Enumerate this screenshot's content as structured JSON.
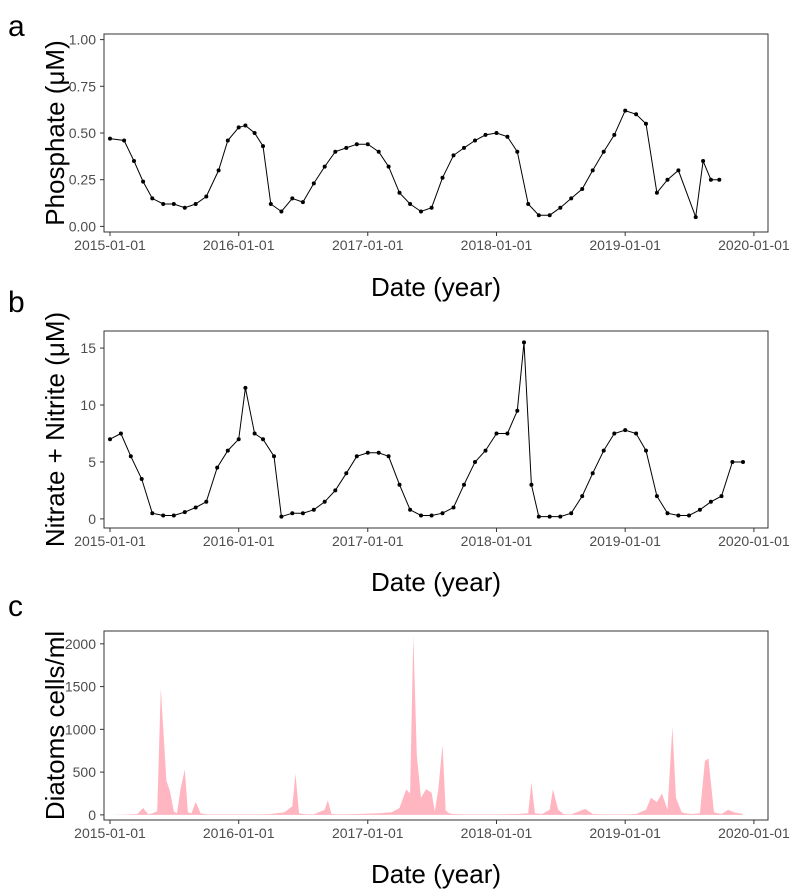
{
  "chart_data": [
    {
      "type": "line",
      "panel_label": "a",
      "xlabel": "Date (year)",
      "ylabel": "Phosphate (μM)",
      "x_ticks": [
        "2015-01-01",
        "2016-01-01",
        "2017-01-01",
        "2018-01-01",
        "2019-01-01",
        "2020-01-01"
      ],
      "xlim": [
        "2014-12-15",
        "2020-02-10"
      ],
      "y_ticks": [
        "0.00",
        "0.25",
        "0.50",
        "0.75",
        "1.00"
      ],
      "ylim": [
        -0.03,
        1.03
      ],
      "grid": false,
      "line_color": "#000000",
      "marker": "point",
      "series": [
        {
          "dates": [
            "2015-01-01",
            "2015-02-10",
            "2015-03-10",
            "2015-04-05",
            "2015-05-01",
            "2015-06-01",
            "2015-07-01",
            "2015-08-01",
            "2015-09-01",
            "2015-10-01",
            "2015-11-05",
            "2015-12-01",
            "2016-01-01",
            "2016-01-20",
            "2016-02-15",
            "2016-03-10",
            "2016-04-01",
            "2016-05-01",
            "2016-06-01",
            "2016-07-01",
            "2016-08-01",
            "2016-09-01",
            "2016-10-01",
            "2016-11-01",
            "2016-12-01",
            "2017-01-01",
            "2017-02-01",
            "2017-03-01",
            "2017-04-01",
            "2017-05-01",
            "2017-06-01",
            "2017-07-01",
            "2017-08-01",
            "2017-09-01",
            "2017-10-01",
            "2017-11-01",
            "2017-12-01",
            "2018-01-01",
            "2018-02-01",
            "2018-03-01",
            "2018-04-01",
            "2018-05-01",
            "2018-06-01",
            "2018-07-01",
            "2018-08-01",
            "2018-09-01",
            "2018-10-01",
            "2018-11-01",
            "2018-12-01",
            "2019-01-01",
            "2019-02-01",
            "2019-03-01",
            "2019-04-01",
            "2019-05-01",
            "2019-06-01",
            "2019-07-20",
            "2019-08-10",
            "2019-09-01",
            "2019-09-25"
          ],
          "values": [
            0.47,
            0.46,
            0.35,
            0.24,
            0.15,
            0.12,
            0.12,
            0.1,
            0.12,
            0.16,
            0.3,
            0.46,
            0.53,
            0.54,
            0.5,
            0.43,
            0.12,
            0.08,
            0.15,
            0.13,
            0.23,
            0.32,
            0.4,
            0.42,
            0.44,
            0.44,
            0.4,
            0.32,
            0.18,
            0.12,
            0.08,
            0.1,
            0.26,
            0.38,
            0.42,
            0.46,
            0.49,
            0.5,
            0.48,
            0.4,
            0.12,
            0.06,
            0.06,
            0.1,
            0.15,
            0.2,
            0.3,
            0.4,
            0.49,
            0.62,
            0.6,
            0.55,
            0.18,
            0.25,
            0.3,
            0.05,
            0.35,
            0.25,
            0.25
          ]
        }
      ]
    },
    {
      "type": "line",
      "panel_label": "b",
      "xlabel": "Date (year)",
      "ylabel": "Nitrate + Nitrite (μM)",
      "x_ticks": [
        "2015-01-01",
        "2016-01-01",
        "2017-01-01",
        "2018-01-01",
        "2019-01-01",
        "2020-01-01"
      ],
      "xlim": [
        "2014-12-15",
        "2020-02-10"
      ],
      "y_ticks": [
        "0",
        "5",
        "10",
        "15"
      ],
      "ylim": [
        -0.8,
        16.5
      ],
      "grid": false,
      "line_color": "#000000",
      "marker": "point",
      "series": [
        {
          "dates": [
            "2015-01-01",
            "2015-02-01",
            "2015-03-01",
            "2015-04-01",
            "2015-05-01",
            "2015-06-01",
            "2015-07-01",
            "2015-08-01",
            "2015-09-01",
            "2015-10-01",
            "2015-11-01",
            "2015-12-01",
            "2016-01-01",
            "2016-01-20",
            "2016-02-15",
            "2016-03-10",
            "2016-04-10",
            "2016-05-01",
            "2016-06-01",
            "2016-07-01",
            "2016-08-01",
            "2016-09-01",
            "2016-10-01",
            "2016-11-01",
            "2016-12-01",
            "2017-01-01",
            "2017-02-01",
            "2017-03-01",
            "2017-04-01",
            "2017-05-01",
            "2017-06-01",
            "2017-07-01",
            "2017-08-01",
            "2017-09-01",
            "2017-10-01",
            "2017-11-01",
            "2017-12-01",
            "2018-01-01",
            "2018-02-01",
            "2018-03-01",
            "2018-03-20",
            "2018-04-10",
            "2018-05-01",
            "2018-06-01",
            "2018-07-01",
            "2018-08-01",
            "2018-09-01",
            "2018-10-01",
            "2018-11-01",
            "2018-12-01",
            "2019-01-01",
            "2019-02-01",
            "2019-03-01",
            "2019-04-01",
            "2019-05-01",
            "2019-06-01",
            "2019-07-01",
            "2019-08-01",
            "2019-09-01",
            "2019-10-01",
            "2019-11-01",
            "2019-12-01"
          ],
          "values": [
            7.0,
            7.5,
            5.5,
            3.5,
            0.5,
            0.3,
            0.3,
            0.6,
            1.0,
            1.5,
            4.5,
            6.0,
            7.0,
            11.5,
            7.5,
            7.0,
            5.5,
            0.2,
            0.5,
            0.5,
            0.8,
            1.5,
            2.5,
            4.0,
            5.5,
            5.8,
            5.8,
            5.5,
            3.0,
            0.8,
            0.3,
            0.3,
            0.5,
            1.0,
            3.0,
            5.0,
            6.0,
            7.5,
            7.5,
            9.5,
            15.5,
            3.0,
            0.2,
            0.2,
            0.2,
            0.5,
            2.0,
            4.0,
            6.0,
            7.5,
            7.8,
            7.5,
            6.0,
            2.0,
            0.5,
            0.3,
            0.3,
            0.8,
            1.5,
            2.0,
            5.0,
            5.0
          ]
        }
      ]
    },
    {
      "type": "area",
      "panel_label": "c",
      "xlabel": "Date (year)",
      "ylabel": "Diatoms cells/ml",
      "x_ticks": [
        "2015-01-01",
        "2016-01-01",
        "2017-01-01",
        "2018-01-01",
        "2019-01-01",
        "2020-01-01"
      ],
      "xlim": [
        "2014-12-15",
        "2020-02-10"
      ],
      "y_ticks": [
        "0",
        "500",
        "1000",
        "1500",
        "2000"
      ],
      "ylim": [
        -60,
        2150
      ],
      "grid": false,
      "fill_color": "#ffb6c1",
      "series": [
        {
          "dates": [
            "2015-01-01",
            "2015-03-01",
            "2015-03-20",
            "2015-04-05",
            "2015-04-20",
            "2015-05-01",
            "2015-05-15",
            "2015-05-25",
            "2015-06-10",
            "2015-06-20",
            "2015-07-01",
            "2015-07-10",
            "2015-07-20",
            "2015-08-01",
            "2015-08-10",
            "2015-08-20",
            "2015-09-01",
            "2015-09-15",
            "2015-10-01",
            "2015-12-01",
            "2016-03-01",
            "2016-04-01",
            "2016-05-10",
            "2016-06-01",
            "2016-06-10",
            "2016-06-20",
            "2016-07-01",
            "2016-08-01",
            "2016-09-01",
            "2016-09-10",
            "2016-09-20",
            "2016-10-10",
            "2016-12-01",
            "2017-02-01",
            "2017-03-10",
            "2017-04-01",
            "2017-04-20",
            "2017-05-01",
            "2017-05-10",
            "2017-05-20",
            "2017-06-01",
            "2017-06-15",
            "2017-07-01",
            "2017-07-10",
            "2017-07-20",
            "2017-08-01",
            "2017-08-10",
            "2017-08-20",
            "2017-09-01",
            "2017-10-01",
            "2018-01-01",
            "2018-03-01",
            "2018-04-01",
            "2018-04-10",
            "2018-04-20",
            "2018-05-10",
            "2018-06-01",
            "2018-06-10",
            "2018-06-25",
            "2018-07-10",
            "2018-08-01",
            "2018-09-10",
            "2018-10-01",
            "2018-11-01",
            "2019-01-01",
            "2019-02-01",
            "2019-03-01",
            "2019-03-15",
            "2019-04-01",
            "2019-04-15",
            "2019-05-01",
            "2019-05-15",
            "2019-05-25",
            "2019-06-10",
            "2019-06-20",
            "2019-07-10",
            "2019-08-01",
            "2019-08-15",
            "2019-08-25",
            "2019-09-10",
            "2019-10-01",
            "2019-10-20",
            "2019-11-05",
            "2019-12-01"
          ],
          "values": [
            0,
            5,
            10,
            80,
            5,
            20,
            40,
            1480,
            400,
            280,
            40,
            20,
            300,
            530,
            30,
            20,
            150,
            20,
            5,
            5,
            5,
            10,
            30,
            100,
            480,
            20,
            10,
            5,
            60,
            170,
            10,
            5,
            10,
            20,
            30,
            80,
            300,
            250,
            2100,
            700,
            200,
            300,
            260,
            40,
            300,
            820,
            50,
            20,
            10,
            5,
            5,
            10,
            20,
            380,
            20,
            10,
            60,
            300,
            60,
            10,
            5,
            70,
            10,
            5,
            5,
            10,
            60,
            200,
            150,
            250,
            60,
            1030,
            200,
            30,
            20,
            10,
            20,
            630,
            660,
            30,
            10,
            60,
            30,
            10
          ]
        }
      ]
    }
  ]
}
